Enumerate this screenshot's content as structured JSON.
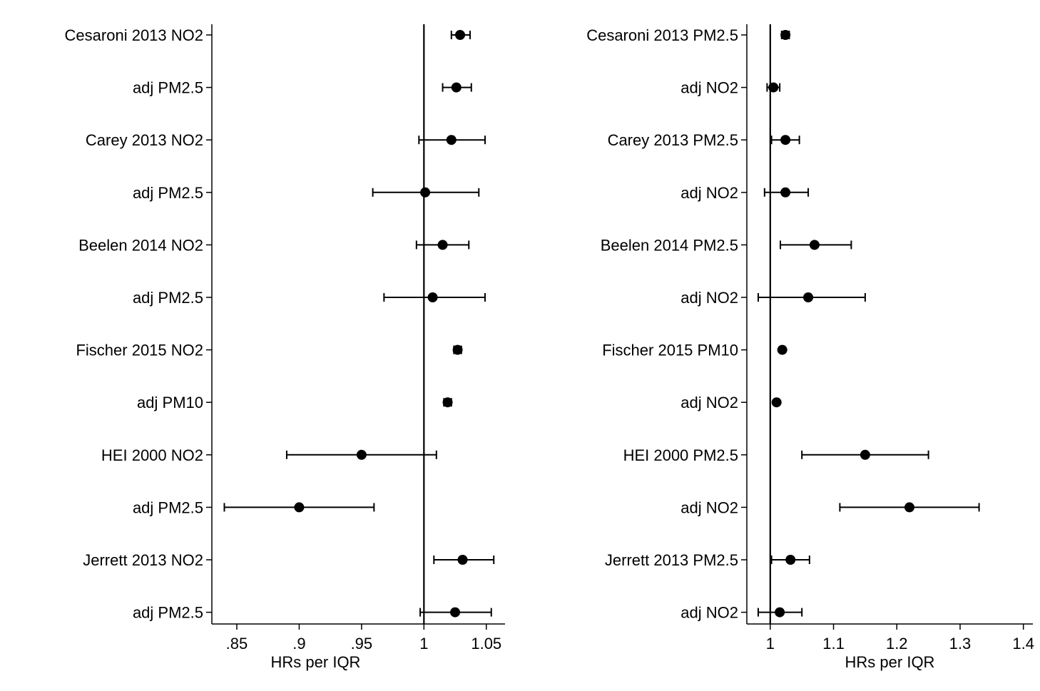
{
  "chart_data": [
    {
      "type": "scatter",
      "subtype": "forest-plot",
      "title": "",
      "xlabel": "HRs per IQR",
      "ylabel": "",
      "xlim": [
        0.83,
        1.065
      ],
      "x_ticks": [
        0.85,
        0.9,
        0.95,
        1,
        1.05
      ],
      "x_tick_labels": [
        ".85",
        ".9",
        ".95",
        "1",
        "1.05"
      ],
      "reference_line": 1,
      "grid": false,
      "legend": "none",
      "marker_color": "#000000",
      "rows": [
        {
          "label": "Cesaroni 2013 NO2",
          "hr": 1.029,
          "lower": 1.022,
          "upper": 1.037
        },
        {
          "label": "adj PM2.5",
          "hr": 1.026,
          "lower": 1.015,
          "upper": 1.038
        },
        {
          "label": "Carey 2013 NO2",
          "hr": 1.022,
          "lower": 0.996,
          "upper": 1.049
        },
        {
          "label": "adj PM2.5",
          "hr": 1.001,
          "lower": 0.959,
          "upper": 1.044
        },
        {
          "label": "Beelen 2014 NO2",
          "hr": 1.015,
          "lower": 0.994,
          "upper": 1.036
        },
        {
          "label": "adj PM2.5",
          "hr": 1.007,
          "lower": 0.968,
          "upper": 1.049
        },
        {
          "label": "Fischer 2015 NO2",
          "hr": 1.027,
          "lower": 1.024,
          "upper": 1.03
        },
        {
          "label": "adj PM10",
          "hr": 1.019,
          "lower": 1.016,
          "upper": 1.022
        },
        {
          "label": "HEI 2000 NO2",
          "hr": 0.95,
          "lower": 0.89,
          "upper": 1.01
        },
        {
          "label": "adj PM2.5",
          "hr": 0.9,
          "lower": 0.84,
          "upper": 0.96
        },
        {
          "label": "Jerrett 2013 NO2",
          "hr": 1.031,
          "lower": 1.008,
          "upper": 1.056
        },
        {
          "label": "adj PM2.5",
          "hr": 1.025,
          "lower": 0.997,
          "upper": 1.054
        }
      ]
    },
    {
      "type": "scatter",
      "subtype": "forest-plot",
      "title": "",
      "xlabel": "HRs per IQR",
      "ylabel": "",
      "xlim": [
        0.963,
        1.415
      ],
      "x_ticks": [
        1,
        1.1,
        1.2,
        1.3,
        1.4
      ],
      "x_tick_labels": [
        "1",
        "1.1",
        "1.2",
        "1.3",
        "1.4"
      ],
      "reference_line": 1,
      "grid": false,
      "legend": "none",
      "marker_color": "#000000",
      "rows": [
        {
          "label": "Cesaroni 2013 PM2.5",
          "hr": 1.024,
          "lower": 1.018,
          "upper": 1.03
        },
        {
          "label": "adj NO2",
          "hr": 1.005,
          "lower": 0.995,
          "upper": 1.015
        },
        {
          "label": "Carey 2013 PM2.5",
          "hr": 1.024,
          "lower": 1.002,
          "upper": 1.046
        },
        {
          "label": "adj NO2",
          "hr": 1.024,
          "lower": 0.991,
          "upper": 1.06
        },
        {
          "label": "Beelen 2014 PM2.5",
          "hr": 1.07,
          "lower": 1.016,
          "upper": 1.128
        },
        {
          "label": "adj NO2",
          "hr": 1.06,
          "lower": 0.981,
          "upper": 1.15
        },
        {
          "label": "Fischer 2015 PM10",
          "hr": 1.019,
          "lower": 1.016,
          "upper": 1.022
        },
        {
          "label": "adj NO2",
          "hr": 1.01,
          "lower": 1.007,
          "upper": 1.013
        },
        {
          "label": "HEI 2000 PM2.5",
          "hr": 1.15,
          "lower": 1.05,
          "upper": 1.25
        },
        {
          "label": "adj NO2",
          "hr": 1.22,
          "lower": 1.11,
          "upper": 1.33
        },
        {
          "label": "Jerrett 2013 PM2.5",
          "hr": 1.032,
          "lower": 1.002,
          "upper": 1.062
        },
        {
          "label": "adj NO2",
          "hr": 1.015,
          "lower": 0.981,
          "upper": 1.05
        }
      ]
    }
  ]
}
